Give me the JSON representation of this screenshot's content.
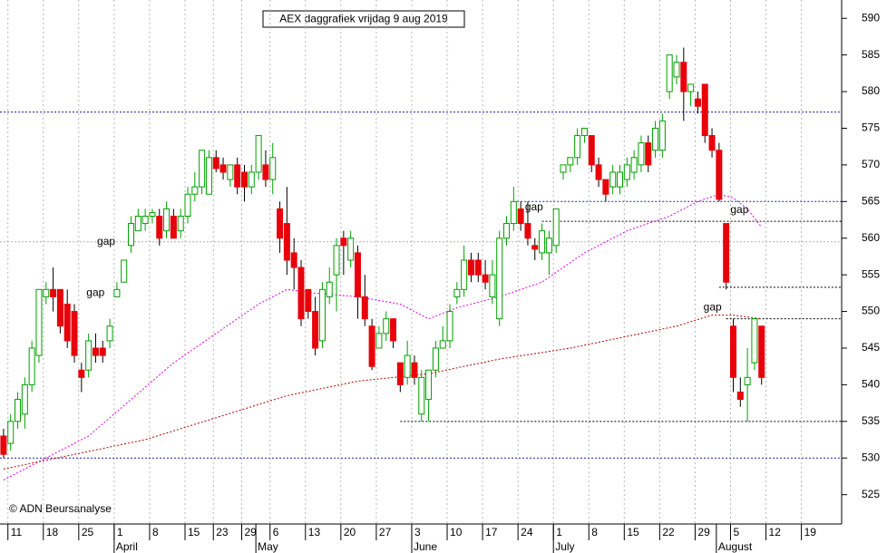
{
  "chart_data": {
    "type": "candlestick",
    "title": "AEX daggrafiek vrijdag 9 aug 2019",
    "credit": "© ADN Beursanalyse",
    "up_color": "#00a000",
    "down_color": "#e8000b",
    "ylim": [
      521,
      592.5
    ],
    "yticks": [
      525,
      530,
      535,
      540,
      545,
      550,
      555,
      560,
      565,
      570,
      575,
      580,
      585,
      590
    ],
    "xlim": [
      -0.5,
      118.3
    ],
    "xticks": [
      {
        "value": 1,
        "label": "11"
      },
      {
        "value": 6,
        "label": "18"
      },
      {
        "value": 11,
        "label": "25"
      },
      {
        "value": 16,
        "label": "1"
      },
      {
        "value": 21,
        "label": "8"
      },
      {
        "value": 26,
        "label": "15"
      },
      {
        "value": 30,
        "label": "23"
      },
      {
        "value": 34,
        "label": "29"
      },
      {
        "value": 38,
        "label": "6"
      },
      {
        "value": 43,
        "label": "13"
      },
      {
        "value": 48,
        "label": "20"
      },
      {
        "value": 53,
        "label": "27"
      },
      {
        "value": 58,
        "label": "3"
      },
      {
        "value": 63,
        "label": "10"
      },
      {
        "value": 68,
        "label": "17"
      },
      {
        "value": 73,
        "label": "24"
      },
      {
        "value": 78,
        "label": "1"
      },
      {
        "value": 83,
        "label": "8"
      },
      {
        "value": 88,
        "label": "15"
      },
      {
        "value": 93,
        "label": "22"
      },
      {
        "value": 98,
        "label": "29"
      },
      {
        "value": 103,
        "label": "5"
      },
      {
        "value": 108,
        "label": "12"
      },
      {
        "value": 113,
        "label": "19"
      }
    ],
    "months": [
      {
        "value": 16,
        "label": "April"
      },
      {
        "value": 36,
        "label": "May"
      },
      {
        "value": 58,
        "label": "June"
      },
      {
        "value": 78,
        "label": "July"
      },
      {
        "value": 101,
        "label": "August"
      }
    ],
    "ohlc": [
      [
        533,
        534,
        530,
        530.5
      ],
      [
        532,
        536,
        531,
        535
      ],
      [
        535,
        539,
        534,
        538
      ],
      [
        536,
        541,
        534,
        540
      ],
      [
        540,
        546,
        539,
        545
      ],
      [
        544,
        553,
        543,
        553
      ],
      [
        552,
        554,
        551,
        553
      ],
      [
        553,
        556,
        550,
        552
      ],
      [
        553,
        553,
        547,
        548
      ],
      [
        551,
        553,
        545,
        546
      ],
      [
        550,
        551,
        543,
        544
      ],
      [
        542,
        543,
        539,
        541
      ],
      [
        542,
        547,
        541,
        546
      ],
      [
        545,
        547,
        543,
        544
      ],
      [
        545,
        546,
        543,
        544
      ],
      [
        546,
        549,
        545,
        548
      ],
      [
        552,
        554,
        552,
        553
      ],
      [
        554,
        557,
        554,
        557
      ],
      [
        559,
        563,
        558,
        562
      ],
      [
        561,
        564,
        561,
        563
      ],
      [
        562,
        564,
        561,
        563
      ],
      [
        563,
        564,
        562,
        563.5
      ],
      [
        563,
        564,
        559,
        560
      ],
      [
        561,
        565,
        560,
        564
      ],
      [
        563,
        564,
        560,
        560
      ],
      [
        561,
        564,
        560,
        563
      ],
      [
        563,
        567,
        562,
        566
      ],
      [
        566,
        569,
        565,
        567
      ],
      [
        567,
        572,
        566,
        572
      ],
      [
        566,
        572,
        566,
        571
      ],
      [
        571,
        572,
        569,
        569.5
      ],
      [
        570,
        571,
        568,
        569
      ],
      [
        568,
        570,
        567,
        570
      ],
      [
        570,
        571,
        566,
        567
      ],
      [
        569,
        570,
        565,
        567
      ],
      [
        567,
        570,
        566,
        569
      ],
      [
        569,
        574,
        568,
        574
      ],
      [
        570,
        572,
        567,
        568
      ],
      [
        568,
        573,
        566,
        571
      ],
      [
        564,
        565,
        558,
        560
      ],
      [
        562,
        567,
        555,
        557
      ],
      [
        558,
        560,
        553,
        556
      ],
      [
        556,
        557,
        548,
        549
      ],
      [
        553,
        553,
        549,
        550
      ],
      [
        550,
        552,
        544,
        545
      ],
      [
        546,
        554,
        545,
        553
      ],
      [
        552,
        556,
        551,
        554
      ],
      [
        555,
        560,
        550,
        559
      ],
      [
        560,
        561,
        555,
        559
      ],
      [
        557,
        561,
        556,
        560
      ],
      [
        558,
        559,
        549,
        552
      ],
      [
        552,
        555,
        548,
        549
      ],
      [
        548,
        549,
        542,
        542.5
      ],
      [
        545,
        548,
        545,
        547
      ],
      [
        547,
        550,
        546,
        549
      ],
      [
        549,
        549,
        545,
        546
      ],
      [
        543,
        543,
        539,
        540
      ],
      [
        541,
        546,
        540,
        544
      ],
      [
        543,
        544,
        540,
        541
      ],
      [
        536,
        542,
        535,
        541
      ],
      [
        538,
        542,
        535,
        542
      ],
      [
        542,
        546,
        541,
        545
      ],
      [
        545,
        548,
        545,
        546
      ],
      [
        546,
        551,
        545,
        550
      ],
      [
        552,
        554,
        551,
        553
      ],
      [
        553,
        559,
        552,
        557
      ],
      [
        557,
        558,
        554,
        555
      ],
      [
        557,
        558,
        554,
        555
      ],
      [
        555,
        557,
        553,
        554
      ],
      [
        552,
        557,
        551,
        555
      ],
      [
        549,
        561,
        548,
        560
      ],
      [
        560,
        563,
        559,
        562
      ],
      [
        562,
        567,
        561,
        565
      ],
      [
        564,
        565,
        561,
        562
      ],
      [
        562,
        565,
        559,
        560
      ],
      [
        559,
        560,
        557,
        558.5
      ],
      [
        558,
        562,
        557,
        561
      ],
      [
        558,
        561,
        555,
        560
      ],
      [
        559,
        564,
        558,
        564
      ],
      [
        569,
        570,
        568,
        570
      ],
      [
        570,
        571,
        569,
        571
      ],
      [
        571,
        575,
        570,
        574
      ],
      [
        574,
        575,
        573,
        575
      ],
      [
        574,
        574,
        569,
        570
      ],
      [
        570,
        571,
        567,
        568
      ],
      [
        568,
        568,
        565,
        566
      ],
      [
        567,
        570,
        566,
        569
      ],
      [
        567,
        570,
        566,
        569
      ],
      [
        568,
        571,
        567,
        570
      ],
      [
        569,
        572,
        568,
        571
      ],
      [
        570,
        574,
        569,
        573
      ],
      [
        573,
        574,
        569,
        570
      ],
      [
        572,
        576,
        571,
        575
      ],
      [
        572,
        577,
        571,
        576
      ],
      [
        580,
        585,
        579,
        585
      ],
      [
        582,
        585,
        581,
        584
      ],
      [
        584,
        586,
        576,
        580
      ],
      [
        580,
        581,
        578,
        581
      ],
      [
        579,
        580,
        577,
        578
      ],
      [
        581,
        581,
        573,
        574
      ],
      [
        574,
        575,
        571,
        572
      ],
      [
        572,
        573,
        565,
        565.3
      ],
      [
        562,
        562,
        553,
        554
      ],
      [
        548,
        549,
        539,
        541
      ],
      [
        539,
        541,
        537,
        538
      ],
      [
        540,
        545,
        535,
        541
      ],
      [
        543,
        549,
        542,
        549
      ],
      [
        548,
        548,
        540,
        541
      ]
    ],
    "averages": [
      {
        "color": "#e000e0",
        "x": [
          0,
          6,
          12,
          18,
          24,
          30,
          36,
          40,
          44,
          50,
          56,
          60,
          64,
          70,
          76,
          82,
          88,
          94,
          98,
          101,
          103,
          105,
          107
        ],
        "values": [
          527,
          530,
          533,
          538,
          543,
          547,
          551,
          553,
          552.5,
          552,
          551,
          549,
          550.5,
          552,
          554,
          558,
          561,
          563,
          565,
          566,
          565.5,
          564,
          561.5
        ]
      },
      {
        "color": "#b00000",
        "x": [
          0,
          10,
          20,
          30,
          40,
          50,
          60,
          70,
          80,
          90,
          95,
          100,
          103,
          107
        ],
        "values": [
          528.5,
          530.5,
          532.5,
          535.5,
          538.5,
          540.5,
          541.5,
          543.5,
          545,
          547,
          548,
          549.5,
          549.5,
          549
        ]
      }
    ],
    "levels": [
      {
        "value": 577.2,
        "from": -0.5,
        "color": "#1f1fa0"
      },
      {
        "value": 565,
        "from": 72.5,
        "color": "#1f1fa0"
      },
      {
        "value": 530,
        "from": -0.5,
        "color": "#1f1fa0"
      },
      {
        "value": 559.5,
        "from": -0.5,
        "color": "#b0b0b0"
      },
      {
        "value": 562.3,
        "from": 76,
        "color": "#000000"
      },
      {
        "value": 553.3,
        "from": 101,
        "color": "#000000"
      },
      {
        "value": 549,
        "from": 102,
        "color": "#000000"
      },
      {
        "value": 535,
        "from": 56,
        "color": "#000000"
      }
    ],
    "annotations": [
      {
        "text": "gap",
        "x": 13.2,
        "y": 559.5,
        "color": "#b0b0b0"
      },
      {
        "text": "gap",
        "x": 11.7,
        "y": 552.5,
        "color": "#b0b0b0"
      },
      {
        "text": "gap",
        "x": 73.6,
        "y": 564.2,
        "color": "#000000"
      },
      {
        "text": "gap",
        "x": 102.6,
        "y": 563.8,
        "color": "#000000"
      },
      {
        "text": "gap",
        "x": 98.8,
        "y": 550.5,
        "color": "#000000"
      }
    ]
  }
}
